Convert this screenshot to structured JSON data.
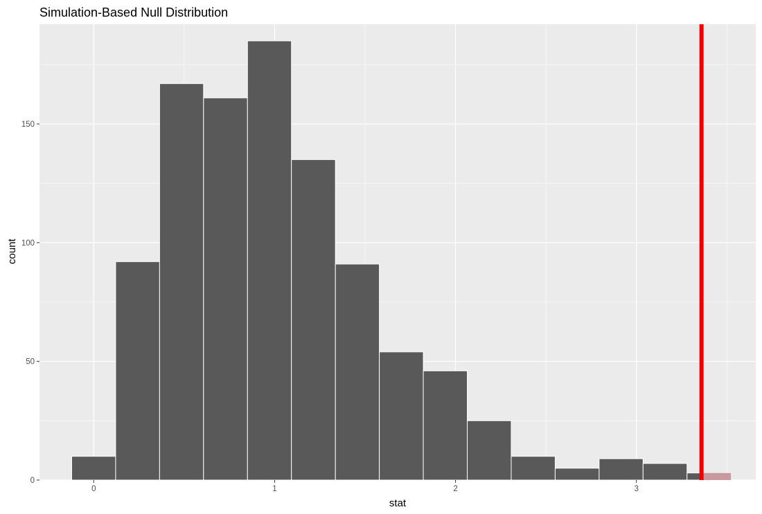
{
  "chart_data": {
    "type": "bar",
    "title": "Simulation-Based Null Distribution",
    "xlabel": "stat",
    "ylabel": "count",
    "xlim": [
      -0.3,
      3.66
    ],
    "ylim": [
      0,
      192
    ],
    "x_ticks": [
      "0",
      "1",
      "2",
      "3"
    ],
    "y_ticks": [
      "0",
      "50",
      "100",
      "150"
    ],
    "bin_width": 0.243,
    "bins": [
      {
        "x0": -0.122,
        "x1": 0.121,
        "count": 10,
        "shaded": false
      },
      {
        "x0": 0.121,
        "x1": 0.364,
        "count": 92,
        "shaded": false
      },
      {
        "x0": 0.364,
        "x1": 0.607,
        "count": 167,
        "shaded": false
      },
      {
        "x0": 0.607,
        "x1": 0.85,
        "count": 161,
        "shaded": false
      },
      {
        "x0": 0.85,
        "x1": 1.093,
        "count": 185,
        "shaded": false
      },
      {
        "x0": 1.093,
        "x1": 1.336,
        "count": 135,
        "shaded": false
      },
      {
        "x0": 1.336,
        "x1": 1.579,
        "count": 91,
        "shaded": false
      },
      {
        "x0": 1.579,
        "x1": 1.822,
        "count": 54,
        "shaded": false
      },
      {
        "x0": 1.822,
        "x1": 2.065,
        "count": 46,
        "shaded": false
      },
      {
        "x0": 2.065,
        "x1": 2.308,
        "count": 25,
        "shaded": false
      },
      {
        "x0": 2.308,
        "x1": 2.551,
        "count": 10,
        "shaded": false
      },
      {
        "x0": 2.551,
        "x1": 2.794,
        "count": 5,
        "shaded": false
      },
      {
        "x0": 2.794,
        "x1": 3.037,
        "count": 9,
        "shaded": false
      },
      {
        "x0": 3.037,
        "x1": 3.28,
        "count": 7,
        "shaded": false
      },
      {
        "x0": 3.28,
        "x1": 3.523,
        "count": 3,
        "shaded": true
      }
    ],
    "observed_stat": 3.36,
    "grid": true,
    "colors": {
      "panel": "#ebebeb",
      "grid": "#ffffff",
      "bar": "#595959",
      "bar_border": "#ffffff",
      "shade": "#c79aa0",
      "observed_line": "#ee0000"
    }
  }
}
